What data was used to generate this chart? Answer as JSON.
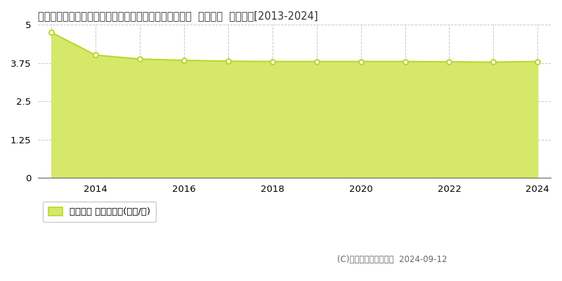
{
  "title": "青森県南津軽郡田舎館村大字田舎舘字中辻１２５番５外  地価公示  地価推移[2013-2024]",
  "years": [
    2013,
    2014,
    2015,
    2016,
    2017,
    2018,
    2019,
    2020,
    2021,
    2022,
    2023,
    2024
  ],
  "values": [
    4.75,
    4.01,
    3.88,
    3.84,
    3.81,
    3.8,
    3.8,
    3.8,
    3.8,
    3.79,
    3.78,
    3.8
  ],
  "ylim": [
    0,
    5
  ],
  "yticks": [
    0,
    1.25,
    2.5,
    3.75,
    5
  ],
  "ytick_labels": [
    "0",
    "1.25",
    "2.5",
    "3.75",
    "5"
  ],
  "xticks": [
    2014,
    2016,
    2018,
    2020,
    2022,
    2024
  ],
  "line_color": "#bdd629",
  "fill_color": "#d6e86a",
  "marker_color": "#ffffff",
  "marker_edge_color": "#bdd629",
  "bg_color": "#ffffff",
  "grid_color": "#bbbbbb",
  "legend_label": "地価公示 平均坪単価(万円/坪)",
  "copyright_text": "(C)土地価格ドットコム  2024-09-12",
  "title_fontsize": 10.5,
  "axis_fontsize": 9.5,
  "legend_fontsize": 9.5
}
